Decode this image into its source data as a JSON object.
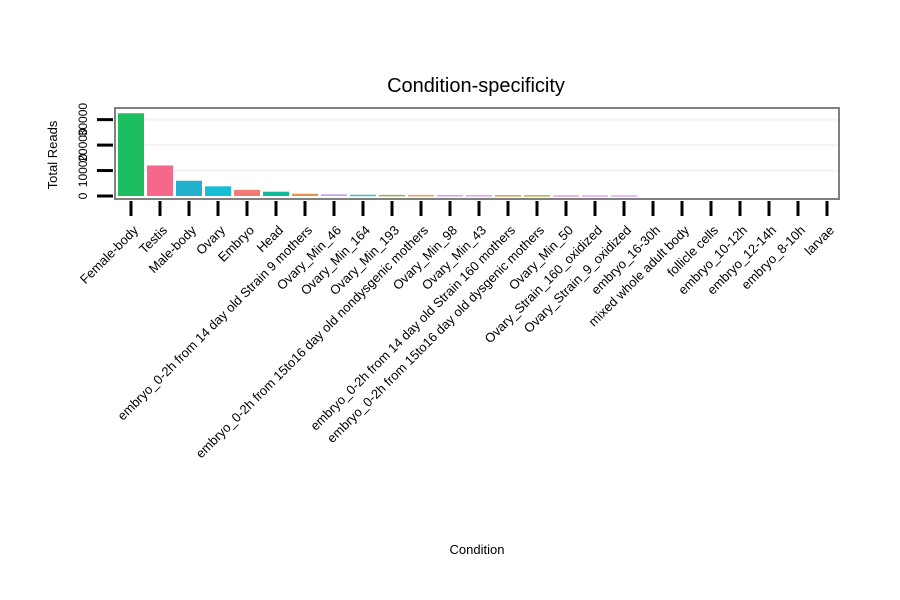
{
  "chart_data": {
    "type": "bar",
    "title": "Condition-specificity",
    "xlabel": "Condition",
    "ylabel": "Total Reads",
    "ylim": [
      0,
      33000
    ],
    "y_ticks": [
      0,
      10000,
      20000,
      30000
    ],
    "y_tick_labels": [
      "0",
      "10000",
      "20000",
      "30000"
    ],
    "categories": [
      "Female-body",
      "Testis",
      "Male-body",
      "Ovary",
      "Embryo",
      "Head",
      "embryo_0-2h from 14 day old Strain 9 mothers",
      "Ovary_Min_46",
      "Ovary_Min_164",
      "Ovary_Min_193",
      "embryo_0-2h from 15to16 day old nondysgenic mothers",
      "Ovary_Min_98",
      "Ovary_Min_43",
      "embryo_0-2h from 14 day old Strain 160 mothers",
      "embryo_0-2h from 15to16 day old dysgenic mothers",
      "Ovary_Min_50",
      "Ovary_Strain_160_oxidized",
      "Ovary_Strain_9_oxidized",
      "embryo_16-30h",
      "mixed whole adult body",
      "follicle cells",
      "embryo_10-12h",
      "embryo_12-14h",
      "embryo_8-10h",
      "larvae"
    ],
    "values": [
      32500,
      12000,
      6000,
      3800,
      2400,
      1700,
      900,
      650,
      500,
      450,
      420,
      400,
      380,
      360,
      340,
      320,
      300,
      280,
      0,
      0,
      0,
      0,
      0,
      0,
      0
    ],
    "colors": [
      "#1dbe5f",
      "#f5688c",
      "#22b1cc",
      "#17bfd5",
      "#f07a74",
      "#12ba9c",
      "#e8954b",
      "#c99bf3",
      "#3dbfc8",
      "#9cad3e",
      "#e6a64c",
      "#d79df3",
      "#e39cf2",
      "#d6a24a",
      "#c6ad3a",
      "#ed9bd8",
      "#e9a3f2",
      "#dfa7f4",
      "#888888",
      "#888888",
      "#888888",
      "#888888",
      "#888888",
      "#888888",
      "#888888"
    ]
  }
}
